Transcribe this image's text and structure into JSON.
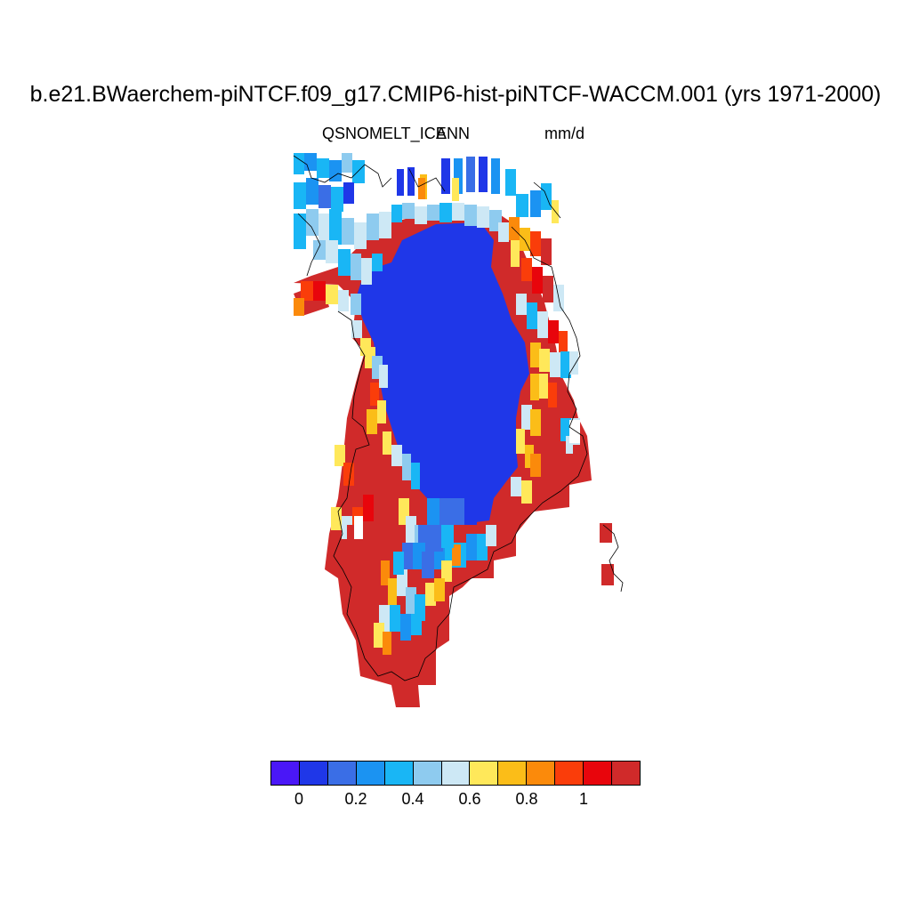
{
  "header": {
    "title": "b.e21.BWaerchem-piNTCF.f09_g17.CMIP6-hist-piNTCF-WACCM.001 (yrs 1971-2000)",
    "variable": "QSNOMELT_ICE",
    "season": "ANN",
    "units": "mm/d"
  },
  "colorbar": {
    "colors": [
      "#4a17f7",
      "#1f37e8",
      "#3a6ee6",
      "#1b93f2",
      "#19b6f5",
      "#8ecbef",
      "#cde8f5",
      "#ffe85a",
      "#fbbd18",
      "#fb8a0b",
      "#fa3d0a",
      "#e8050c",
      "#d02a2a"
    ],
    "tick_labels": [
      "0",
      "0.2",
      "0.4",
      "0.6",
      "0.8",
      "1"
    ]
  },
  "map": {
    "region": "Greenland",
    "colors": {
      "interior": "#1f37e8",
      "margin_high": "#d02a2a",
      "coast_line": "#000000"
    }
  }
}
